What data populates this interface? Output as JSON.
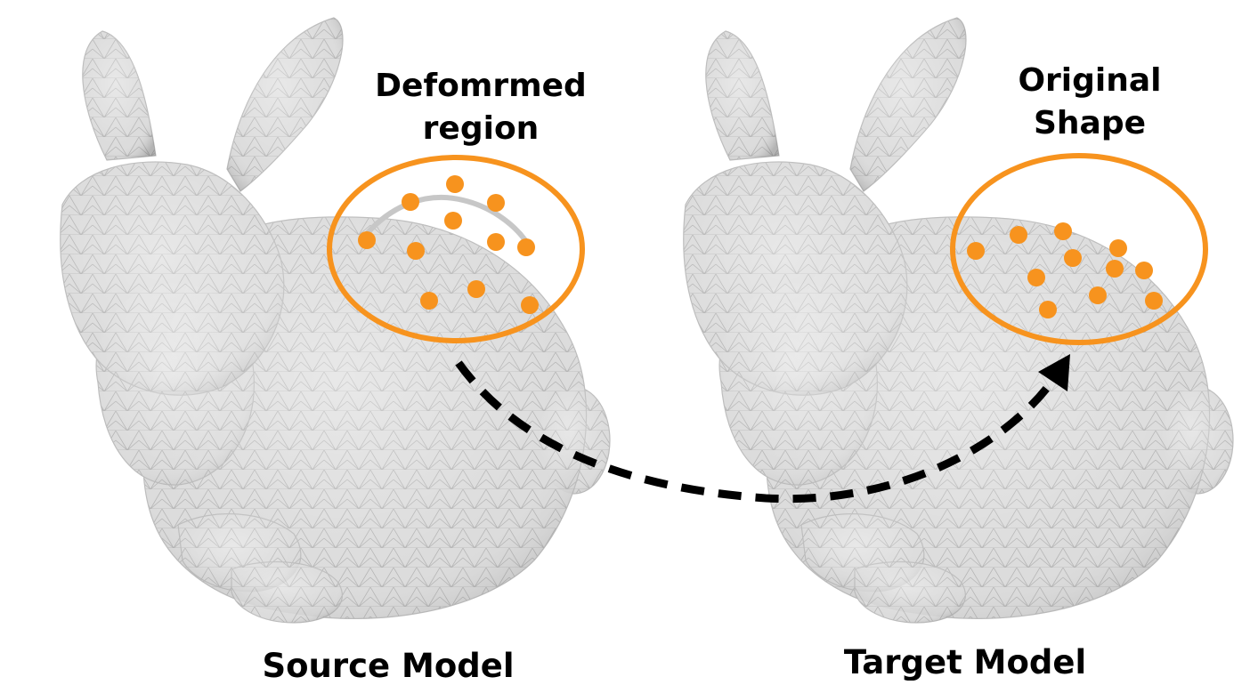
{
  "labels": {
    "deformed_region": [
      "Defomrmed",
      "region"
    ],
    "original_shape": [
      "Original",
      "Shape"
    ],
    "source_model": "Source Model",
    "target_model": "Target Model"
  },
  "icons": {
    "source": "bunny-mesh-icon",
    "target": "bunny-mesh-icon",
    "transfer": "dashed-curved-arrow-icon"
  },
  "colors": {
    "highlight": "#f7931e",
    "mesh_fill": "#d9d9d9",
    "mesh_shadow": "#b8b8b8",
    "mesh_edge": "#a9a9a9",
    "arrow": "#000000",
    "text": "#000000"
  },
  "source_points_count": 12,
  "target_points_count": 12
}
